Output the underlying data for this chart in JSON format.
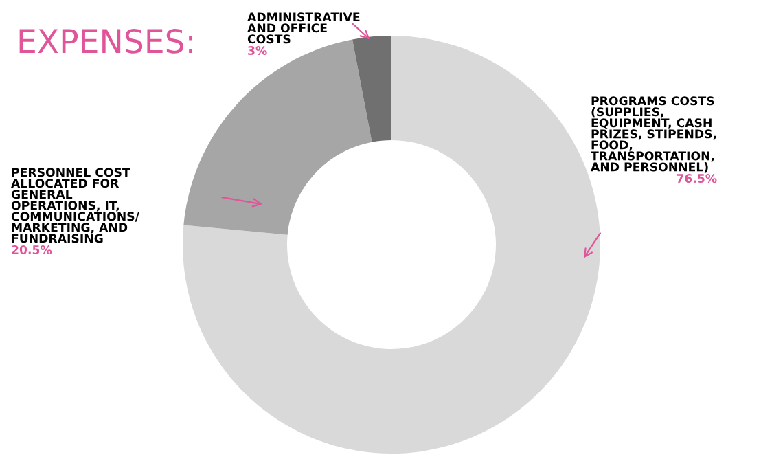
{
  "chart_data": {
    "type": "donut",
    "title": "EXPENSES:",
    "categories": [
      "PROGRAMS COSTS\n(SUPPLIES,\nEQUIPMENT, CASH\nPRIZES, STIPENDS,\nFOOD,\nTRANSPORTATION,\nAND PERSONNEL)",
      "PERSONNEL COST\nALLOCATED FOR\nGENERAL\nOPERATIONS, IT,\nCOMMUNICATIONS/\nMARKETING, AND\nFUNDRAISING",
      "ADMINISTRATIVE\nAND OFFICE\nCOSTS"
    ],
    "values": [
      76.5,
      20.5,
      3
    ],
    "colors": [
      "#d9d9d9",
      "#a6a6a6",
      "#707070"
    ],
    "value_labels": [
      "76.5%",
      "20.5%",
      "3%"
    ]
  }
}
